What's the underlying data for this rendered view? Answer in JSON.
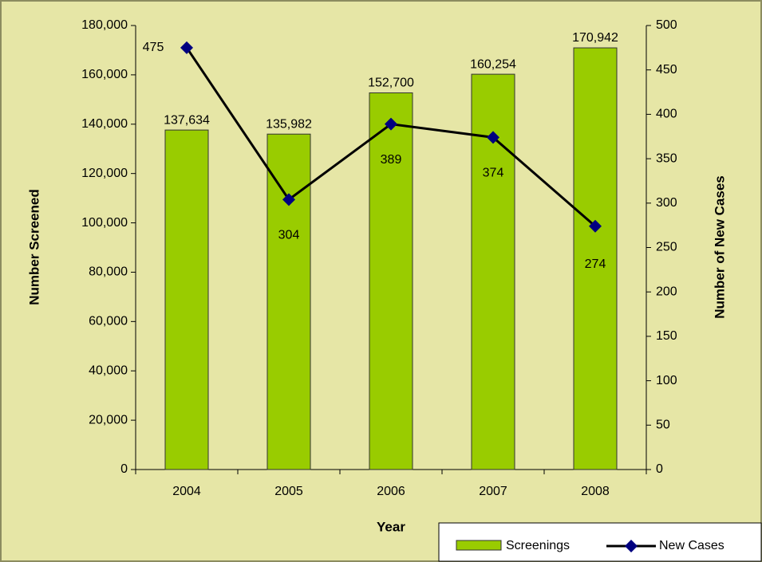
{
  "chart_data": {
    "type": "bar-line",
    "categories": [
      "2004",
      "2005",
      "2006",
      "2007",
      "2008"
    ],
    "x_label": "Year",
    "y_label": "Number Screened",
    "y2_label": "Number of New Cases",
    "series": [
      {
        "name": "Screenings",
        "type": "bar",
        "color": "#99cc00",
        "values": [
          137634,
          135982,
          152700,
          160254,
          170942
        ],
        "value_labels": [
          "137,634",
          "135,982",
          "152,700",
          "160,254",
          "170,942"
        ]
      },
      {
        "name": "New Cases",
        "type": "line",
        "axis": "y2",
        "color": "#000080",
        "values": [
          475,
          304,
          389,
          374,
          274
        ]
      }
    ],
    "ylim": [
      0,
      180000
    ],
    "yticks": [
      0,
      {
        "value": 20000,
        "label": "20,000"
      },
      {
        "value": 40000,
        "label": "40,000"
      },
      {
        "value": 60000,
        "label": "60,000"
      },
      {
        "value": 80000,
        "label": "80,000"
      },
      {
        "value": 100000,
        "label": "100,000"
      },
      {
        "value": 120000,
        "label": "120,000"
      },
      {
        "value": 140000,
        "label": "140,000"
      },
      {
        "value": 160000,
        "label": "160,000"
      },
      {
        "value": 180000,
        "label": "180,000"
      }
    ],
    "y2lim": [
      0,
      500
    ],
    "y2ticks": [
      0,
      50,
      100,
      150,
      200,
      250,
      300,
      350,
      400,
      450,
      500
    ],
    "legend": "bottom-right"
  }
}
